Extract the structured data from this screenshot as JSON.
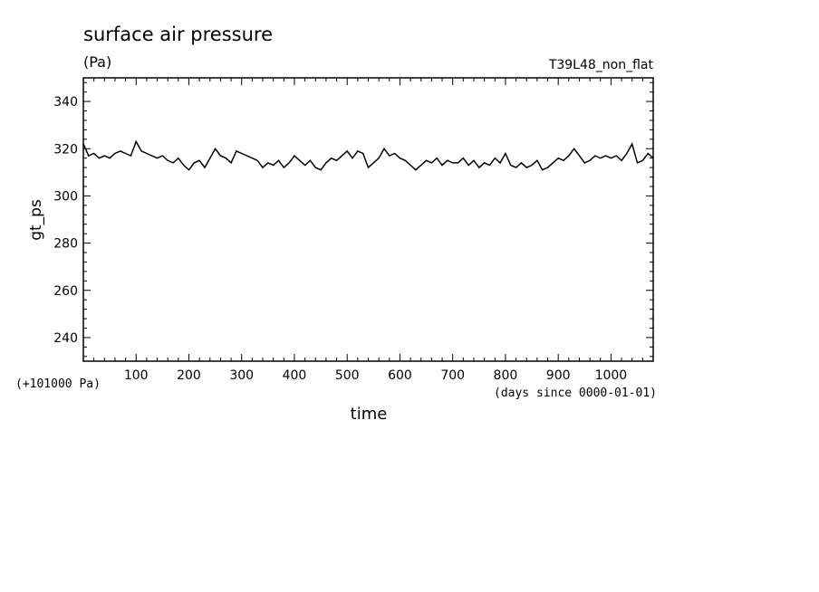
{
  "chart_data": {
    "type": "line",
    "title": "surface air pressure",
    "units": "(Pa)",
    "experiment": "T39L48_non_flat",
    "xlabel": "time",
    "x_units": "(days since 0000-01-01)",
    "ylabel": "gt_ps",
    "y_offset_label": "(+101000 Pa)",
    "xlim": [
      0,
      1080
    ],
    "ylim": [
      230,
      350
    ],
    "x_ticks": [
      100,
      200,
      300,
      400,
      500,
      600,
      700,
      800,
      900,
      1000
    ],
    "y_ticks": [
      240,
      260,
      280,
      300,
      320,
      340
    ],
    "grid": false,
    "series": [
      {
        "x": [
          0,
          10,
          20,
          30,
          40,
          50,
          60,
          70,
          80,
          90,
          100,
          110,
          120,
          130,
          140,
          150,
          160,
          170,
          180,
          190,
          200,
          210,
          220,
          230,
          240,
          250,
          260,
          270,
          280,
          290,
          300,
          310,
          320,
          330,
          340,
          350,
          360,
          370,
          380,
          390,
          400,
          410,
          420,
          430,
          440,
          450,
          460,
          470,
          480,
          490,
          500,
          510,
          520,
          530,
          540,
          550,
          560,
          570,
          580,
          590,
          600,
          610,
          620,
          630,
          640,
          650,
          660,
          670,
          680,
          690,
          700,
          710,
          720,
          730,
          740,
          750,
          760,
          770,
          780,
          790,
          800,
          810,
          820,
          830,
          840,
          850,
          860,
          870,
          880,
          890,
          900,
          910,
          920,
          930,
          940,
          950,
          960,
          970,
          980,
          990,
          1000,
          1010,
          1020,
          1030,
          1040,
          1050,
          1060,
          1070,
          1080
        ],
        "y": [
          322,
          317,
          318,
          316,
          317,
          316,
          318,
          319,
          318,
          317,
          323,
          319,
          318,
          317,
          316,
          317,
          315,
          314,
          316,
          313,
          311,
          314,
          315,
          312,
          316,
          320,
          317,
          316,
          314,
          319,
          318,
          317,
          316,
          315,
          312,
          314,
          313,
          315,
          312,
          314,
          317,
          315,
          313,
          315,
          312,
          311,
          314,
          316,
          315,
          317,
          319,
          316,
          319,
          318,
          312,
          314,
          316,
          320,
          317,
          318,
          316,
          315,
          313,
          311,
          313,
          315,
          314,
          316,
          313,
          315,
          314,
          314,
          316,
          313,
          315,
          312,
          314,
          313,
          316,
          314,
          318,
          313,
          312,
          314,
          312,
          313,
          315,
          311,
          312,
          314,
          316,
          315,
          317,
          320,
          317,
          314,
          315,
          317,
          316,
          317,
          316,
          317,
          315,
          318,
          322,
          314,
          315,
          318,
          316
        ]
      }
    ]
  }
}
